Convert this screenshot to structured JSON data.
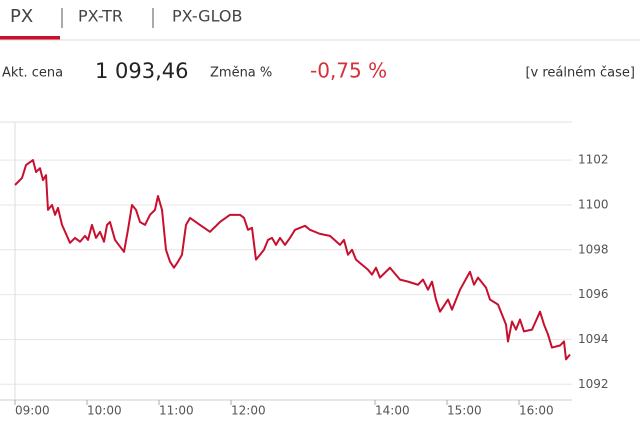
{
  "tabs": [
    "PX",
    "PX-TR",
    "PX-GLOB"
  ],
  "quote": {
    "price_label": "Akt. cena",
    "price": "1 093,46",
    "change_label": "Změna %",
    "change": "-0,75 %",
    "realtime": "[v reálném čase]"
  },
  "chart_data": {
    "type": "line",
    "grid": true,
    "series": [
      {
        "color": "#c8102e",
        "x": [
          9.0,
          9.097,
          9.153,
          9.25,
          9.292,
          9.347,
          9.389,
          9.431,
          9.458,
          9.514,
          9.556,
          9.597,
          9.653,
          9.764,
          9.833,
          9.903,
          9.972,
          10.014,
          10.069,
          10.125,
          10.181,
          10.236,
          10.278,
          10.319,
          10.389,
          10.514,
          10.569,
          10.625,
          10.681,
          10.736,
          10.806,
          10.875,
          10.944,
          10.986,
          11.042,
          11.097,
          11.153,
          11.208,
          11.264,
          11.319,
          11.375,
          11.431,
          11.569,
          11.708,
          11.847,
          11.986,
          12.125,
          12.181,
          12.236,
          12.292,
          12.347,
          12.403,
          12.458,
          12.514,
          12.569,
          12.625,
          12.681,
          12.75,
          12.819,
          12.889,
          13.028,
          13.097,
          13.236,
          13.375,
          13.514,
          13.569,
          13.625,
          13.681,
          13.736,
          13.903,
          13.958,
          14.014,
          14.069,
          14.208,
          14.347,
          14.458,
          14.597,
          14.667,
          14.736,
          14.792,
          14.847,
          14.903,
          15.014,
          15.069,
          15.181,
          15.319,
          15.375,
          15.431,
          15.542,
          15.597,
          15.708,
          15.819,
          15.847,
          15.903,
          15.958,
          16.014,
          16.069,
          16.181,
          16.292,
          16.347,
          16.403,
          16.458,
          16.569,
          16.625,
          16.653,
          16.708
        ],
        "values": [
          1100.89,
          1101.2,
          1101.78,
          1102.0,
          1101.47,
          1101.64,
          1101.11,
          1101.33,
          1099.78,
          1100.0,
          1099.56,
          1099.87,
          1099.11,
          1098.31,
          1098.53,
          1098.36,
          1098.62,
          1098.44,
          1099.11,
          1098.53,
          1098.8,
          1098.36,
          1099.11,
          1099.24,
          1098.44,
          1097.91,
          1098.89,
          1100.0,
          1099.78,
          1099.24,
          1099.11,
          1099.56,
          1099.78,
          1100.4,
          1099.78,
          1098.0,
          1097.47,
          1097.2,
          1097.47,
          1097.78,
          1099.11,
          1099.42,
          1099.11,
          1098.8,
          1099.24,
          1099.56,
          1099.56,
          1099.42,
          1098.89,
          1098.98,
          1097.56,
          1097.78,
          1098.0,
          1098.44,
          1098.53,
          1098.22,
          1098.53,
          1098.22,
          1098.53,
          1098.89,
          1099.07,
          1098.89,
          1098.71,
          1098.62,
          1098.22,
          1098.44,
          1097.78,
          1098.0,
          1097.56,
          1097.11,
          1096.89,
          1097.2,
          1096.76,
          1097.2,
          1096.67,
          1096.58,
          1096.44,
          1096.67,
          1096.22,
          1096.58,
          1095.78,
          1095.24,
          1095.78,
          1095.33,
          1096.22,
          1097.02,
          1096.44,
          1096.76,
          1096.31,
          1095.78,
          1095.56,
          1094.67,
          1093.91,
          1094.8,
          1094.44,
          1094.89,
          1094.36,
          1094.44,
          1095.24,
          1094.67,
          1094.22,
          1093.64,
          1093.73,
          1093.91,
          1093.11,
          1093.33
        ]
      }
    ],
    "xlim": [
      9,
      16.75
    ],
    "xticks": [
      {
        "value": 9,
        "label": "09:00"
      },
      {
        "value": 10,
        "label": "10:00"
      },
      {
        "value": 11,
        "label": "11:00"
      },
      {
        "value": 12,
        "label": "12:00"
      },
      {
        "value": 14,
        "label": "14:00"
      },
      {
        "value": 15,
        "label": "15:00"
      },
      {
        "value": 16,
        "label": "16:00"
      }
    ],
    "ylim": [
      1091.3,
      1103.7
    ],
    "yticks": [
      1092,
      1094,
      1096,
      1098,
      1100,
      1102
    ]
  }
}
